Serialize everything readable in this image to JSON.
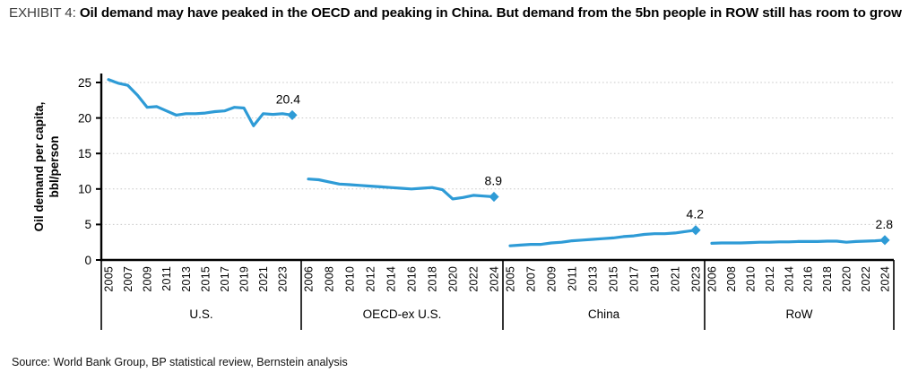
{
  "header": {
    "exhibit_label": "EXHIBIT 4:",
    "title": "Oil demand may have peaked in the OECD and peaking in China. But demand from the 5bn people in ROW still has room to grow"
  },
  "footer": {
    "source": "Source: World Bank Group, BP statistical review, Bernstein analysis"
  },
  "chart_data": {
    "type": "line",
    "ylabel": "Oil demand per capita, bbl/person",
    "ylabel_lines": [
      "Oil demand per capita,",
      "bbl/person"
    ],
    "ylim": [
      0,
      25
    ],
    "yticks": [
      0,
      5,
      10,
      15,
      20,
      25
    ],
    "grid": "horizontal-dotted",
    "grid_color": "#c8c8c8",
    "line_color": "#2E9BD6",
    "marker": "diamond",
    "legend": "none",
    "panels": [
      {
        "label": "U.S.",
        "start_year": 2005,
        "x_tick_labels": [
          "2005",
          "2007",
          "2009",
          "2011",
          "2013",
          "2015",
          "2017",
          "2019",
          "2021",
          "2023"
        ],
        "values": [
          25.4,
          24.9,
          24.6,
          23.2,
          21.5,
          21.6,
          21.0,
          20.4,
          20.6,
          20.6,
          20.7,
          20.9,
          21.0,
          21.5,
          21.4,
          18.9,
          20.6,
          20.5,
          20.6,
          20.4
        ],
        "end_label": "20.4"
      },
      {
        "label": "OECD-ex U.S.",
        "start_year": 2006,
        "x_tick_labels": [
          "2006",
          "2008",
          "2010",
          "2012",
          "2014",
          "2016",
          "2018",
          "2020",
          "2022",
          "2024"
        ],
        "values": [
          11.4,
          11.3,
          11.0,
          10.7,
          10.6,
          10.5,
          10.4,
          10.3,
          10.2,
          10.1,
          10.0,
          10.1,
          10.2,
          9.9,
          8.6,
          8.8,
          9.1,
          9.0,
          8.9
        ],
        "end_label": "8.9"
      },
      {
        "label": "China",
        "start_year": 2005,
        "x_tick_labels": [
          "2005",
          "2007",
          "2009",
          "2011",
          "2013",
          "2015",
          "2017",
          "2019",
          "2021",
          "2023"
        ],
        "values": [
          2.0,
          2.1,
          2.2,
          2.2,
          2.4,
          2.5,
          2.7,
          2.8,
          2.9,
          3.0,
          3.1,
          3.3,
          3.4,
          3.6,
          3.7,
          3.7,
          3.8,
          4.0,
          4.2
        ],
        "end_label": "4.2"
      },
      {
        "label": "RoW",
        "start_year": 2006,
        "x_tick_labels": [
          "2006",
          "2008",
          "2010",
          "2012",
          "2014",
          "2016",
          "2018",
          "2020",
          "2022",
          "2024"
        ],
        "values": [
          2.35,
          2.4,
          2.4,
          2.4,
          2.45,
          2.5,
          2.5,
          2.55,
          2.55,
          2.6,
          2.6,
          2.6,
          2.65,
          2.65,
          2.5,
          2.6,
          2.65,
          2.7,
          2.8
        ],
        "end_label": "2.8"
      }
    ]
  }
}
